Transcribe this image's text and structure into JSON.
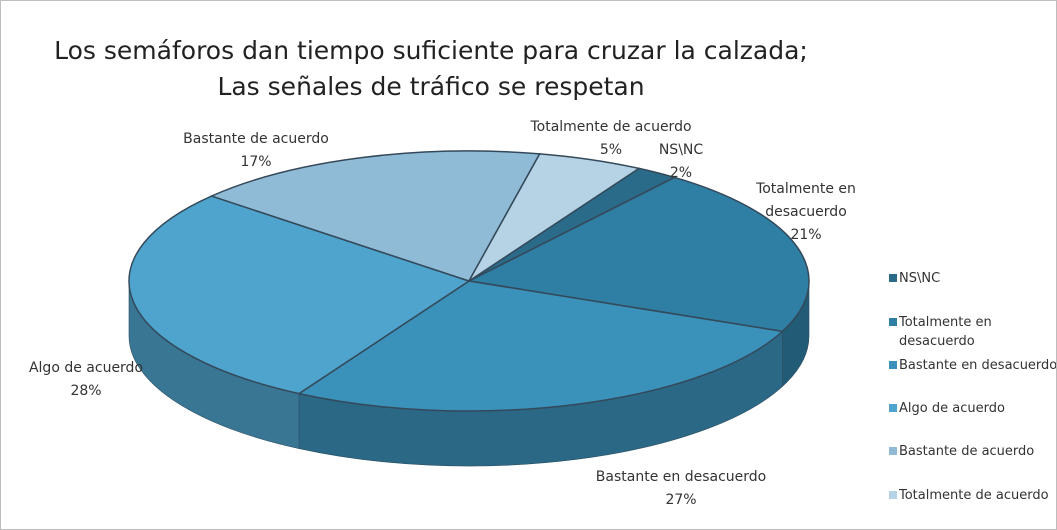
{
  "chart_data": {
    "type": "pie",
    "title": "Los semáforos dan tiempo suficiente para cruzar la calzada; Las señales de tráfico se respetan",
    "categories": [
      "NS\\NC",
      "Totalmente en desacuerdo",
      "Bastante en desacuerdo",
      "Algo de acuerdo",
      "Bastante de acuerdo",
      "Totalmente de acuerdo"
    ],
    "values": [
      2,
      21,
      27,
      28,
      17,
      5
    ],
    "value_labels": [
      "2%",
      "21%",
      "27%",
      "28%",
      "17%",
      "5%"
    ],
    "colors": [
      "#2a6b8a",
      "#2f7ea3",
      "#3a91ba",
      "#4ea4cd",
      "#8fbbd6",
      "#b6d3e5"
    ],
    "legend": "right"
  }
}
